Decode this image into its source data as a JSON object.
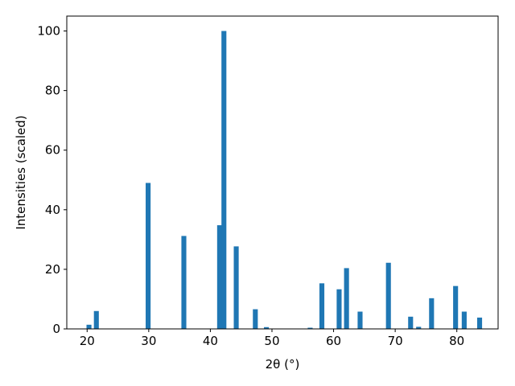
{
  "chart_data": {
    "type": "bar",
    "xlabel": "2θ (°)",
    "ylabel": "Intensities (scaled)",
    "xlim": [
      16.7,
      86.7
    ],
    "ylim": [
      0,
      105
    ],
    "xticks": [
      20,
      30,
      40,
      50,
      60,
      70,
      80
    ],
    "yticks": [
      0,
      20,
      40,
      60,
      80,
      100
    ],
    "bar_color": "#1f77b4",
    "bar_width_deg": 0.8,
    "grid": false,
    "x": [
      20.3,
      21.5,
      29.9,
      35.7,
      41.5,
      42.2,
      44.2,
      47.3,
      49.1,
      56.2,
      58.1,
      60.9,
      62.1,
      64.3,
      68.9,
      72.5,
      73.8,
      75.9,
      79.8,
      81.2,
      83.7
    ],
    "values": [
      1.4,
      6.0,
      49.0,
      31.2,
      34.8,
      100.0,
      27.7,
      6.6,
      0.6,
      0.4,
      15.3,
      13.3,
      20.4,
      5.8,
      22.2,
      4.1,
      0.7,
      10.3,
      14.4,
      5.8,
      3.8
    ]
  }
}
